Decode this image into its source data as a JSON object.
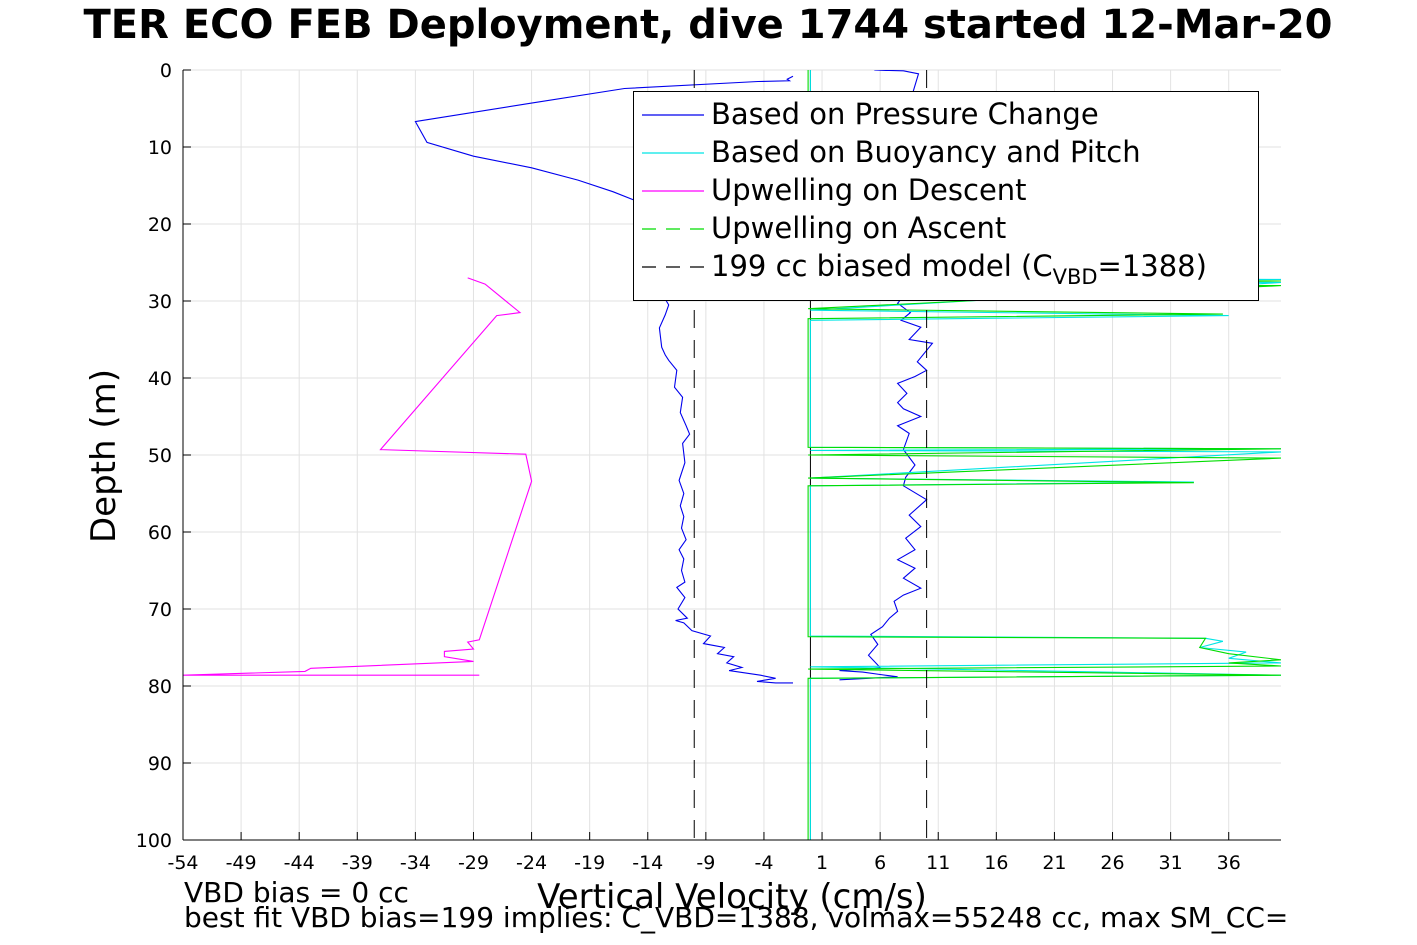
{
  "title": "TER ECO FEB Deployment, dive 1744 started 12-Mar-20",
  "notes": {
    "line1": "VBD bias = 0 cc",
    "line2": "best fit VBD bias=199 implies: C_VBD=1388, volmax=55248 cc, max SM_CC="
  },
  "legend": {
    "entry1": "Based on Pressure Change",
    "entry2": "Based on Buoyancy and Pitch",
    "entry3": "Upwelling on Descent",
    "entry4": "Upwelling on Ascent",
    "entry5_prefix": "199 cc biased model (C",
    "entry5_sub": "VBD",
    "entry5_suffix": "=1388)"
  },
  "chart_data": {
    "type": "line",
    "title": "TER ECO FEB Deployment, dive 1744 started 12-Mar-20",
    "xlabel": "Vertical Velocity (cm/s)",
    "ylabel": "Depth (m)",
    "xlim": [
      -54,
      40.5
    ],
    "ylim": [
      0,
      100
    ],
    "y_reversed": true,
    "grid": true,
    "legend_position": "top-right",
    "xticks": [
      -54,
      -49,
      -44,
      -39,
      -34,
      -29,
      -24,
      -19,
      -14,
      -9,
      -4,
      1,
      6,
      11,
      16,
      21,
      26,
      31,
      36
    ],
    "yticks": [
      0,
      10,
      20,
      30,
      40,
      50,
      60,
      70,
      80,
      90,
      100
    ],
    "colors": {
      "pressure": "#0000ee",
      "buoyancy": "#00e5e5",
      "descent": "#ff00ff",
      "ascent": "#00dd00",
      "model": "#000000",
      "grid": "#e2e2e2",
      "zero_line": "#000000",
      "zero_line_green": "#006400"
    },
    "series": [
      {
        "name": "Based on Pressure Change",
        "color": "#0000ee",
        "x": [
          -1.5,
          -2.0,
          -1.8,
          -4.5,
          -16,
          -24,
          -34,
          -33,
          -29,
          -24,
          -20,
          -17,
          -15,
          -14,
          -13,
          -12.5,
          -12.5,
          -12.8,
          -12.2,
          -12.5,
          -13.0,
          -12.8,
          -12.5,
          -12.2,
          -11.5,
          -11.7,
          -11.0,
          -11.2,
          -10.7,
          -10.4,
          -11.0,
          -10.8,
          -11.3,
          -10.9,
          -11.2,
          -10.9,
          -11.1,
          -10.7,
          -11.3,
          -10.9,
          -11.1,
          -10.8,
          -11.5,
          -10.8,
          -11.4,
          -10.6,
          -11.6,
          -10.9,
          -10.2,
          -8.6,
          -9.2,
          -7.4,
          -8.0,
          -6.6,
          -7.2,
          -5.9,
          -7.0,
          -4.3,
          -3.0,
          -4.6,
          -3.0,
          -1.5
        ],
        "y": [
          0.8,
          1.2,
          1.4,
          1.5,
          2.4,
          4.3,
          6.7,
          9.4,
          11.2,
          12.7,
          14.3,
          15.8,
          17.0,
          18.0,
          19.5,
          21.0,
          25.0,
          29.0,
          30.5,
          31.8,
          33.5,
          36.0,
          37.0,
          37.7,
          39.0,
          41.2,
          42.5,
          44.5,
          46.2,
          47.3,
          48.5,
          51.0,
          53.3,
          55.0,
          56.6,
          58.0,
          59.5,
          61.0,
          62.3,
          63.5,
          65.0,
          66.5,
          67.2,
          68.5,
          70.0,
          71.2,
          71.5,
          71.8,
          72.8,
          73.5,
          74.5,
          75.0,
          75.8,
          76.2,
          77.0,
          77.6,
          78.0,
          78.6,
          79.0,
          79.4,
          79.6,
          79.6
        ]
      },
      {
        "name": "Based on Pressure Change (ascent)",
        "color": "#0000ee",
        "x": [
          2.5,
          7.5,
          6.0,
          4.5,
          2.5,
          6.0,
          5.0,
          5.8,
          5.2,
          6.2,
          6.8,
          7.5,
          7.2,
          8.0,
          9.5,
          8.0,
          9.0,
          7.5,
          9.0,
          8.2,
          9.5,
          8.5,
          10.0,
          8.0,
          8.2,
          9.0,
          8.0,
          8.5,
          7.5,
          9.5,
          8.0,
          7.5,
          8.3,
          7.5,
          9.0,
          10.0,
          9.2,
          10.5,
          8.5,
          9.5,
          7.8,
          8.6,
          7.5,
          8.0,
          7.5,
          8.5,
          7.2,
          8.0,
          7.5,
          7.8,
          7.0,
          8.5,
          7.5,
          8.0,
          8.5,
          7.8,
          9.3,
          8.0,
          6.5,
          5.5
        ],
        "y": [
          79.2,
          78.8,
          78.5,
          78.2,
          78.0,
          77.6,
          76.0,
          74.6,
          73.3,
          72.3,
          71.2,
          70.3,
          69.0,
          68.2,
          67.3,
          66.0,
          64.7,
          63.6,
          62.3,
          60.8,
          59.3,
          57.8,
          55.8,
          54.0,
          52.9,
          51.3,
          49.3,
          47.2,
          46.2,
          45.0,
          44.0,
          43.2,
          42.0,
          40.7,
          39.8,
          39.0,
          37.9,
          35.5,
          35.0,
          33.4,
          32.5,
          31.5,
          30.3,
          29.4,
          28.3,
          26.5,
          25.0,
          23.2,
          21.8,
          20.6,
          19.3,
          18.4,
          17.3,
          15.8,
          10.0,
          8.0,
          0.5,
          0.1,
          0.05,
          0.0
        ]
      },
      {
        "name": "Based on Buoyancy and Pitch",
        "color": "#00e5e5",
        "x": [
          0.0,
          0.0,
          40.5,
          0.0,
          40.5,
          0.0,
          36.0,
          0.0,
          0.0,
          40.5,
          0.0,
          40.5,
          0.0,
          33.0,
          0.0,
          0.0,
          34.0,
          35.5,
          33.5,
          37.5,
          36.0,
          40.5,
          0.0,
          40.5,
          0.0,
          0.0
        ],
        "y": [
          0.0,
          27.0,
          27.2,
          27.4,
          27.6,
          31.2,
          31.9,
          32.5,
          49.0,
          49.2,
          49.4,
          49.6,
          53.0,
          53.5,
          54.0,
          73.5,
          73.8,
          74.2,
          75.0,
          75.6,
          76.4,
          77.0,
          77.5,
          78.6,
          79.0,
          100.0
        ]
      },
      {
        "name": "Upwelling on Descent",
        "color": "#ff00ff",
        "x": [
          -29.5,
          -28,
          -25,
          -27,
          -37,
          -24.5,
          -24,
          -28.5,
          -29.5,
          -29.0,
          -31.5,
          -31.5,
          -29.0,
          -43.0,
          -43.5,
          -54.0,
          -28.5
        ],
        "y": [
          27.0,
          27.8,
          31.5,
          31.9,
          49.3,
          49.9,
          53.4,
          74.0,
          74.3,
          75.2,
          75.5,
          76.2,
          76.8,
          77.7,
          78.1,
          78.6,
          78.6
        ]
      },
      {
        "name": "Upwelling on Ascent",
        "color": "#00dd00",
        "x": [
          -0.2,
          -0.2,
          40.5,
          -0.2,
          40.5,
          -0.2,
          35.5,
          -0.2,
          -0.2,
          40.5,
          -0.2,
          40.5,
          -0.2,
          33.0,
          -0.2,
          -0.2,
          34.0,
          33.5,
          36.0,
          40.5,
          36.0,
          40.5,
          -0.2,
          40.5,
          -0.2,
          -0.2
        ],
        "y": [
          0.0,
          27.2,
          27.4,
          27.8,
          28.0,
          31.0,
          31.7,
          32.3,
          49.0,
          49.2,
          50.0,
          50.4,
          53.0,
          53.6,
          54.0,
          73.6,
          73.8,
          75.0,
          75.8,
          76.6,
          77.0,
          77.4,
          77.8,
          78.6,
          79.0,
          100.0
        ]
      },
      {
        "name": "199 cc biased model (CVBD=1388)",
        "color": "#000000",
        "dash": true,
        "lines_at_x": [
          -10,
          10
        ]
      }
    ]
  }
}
